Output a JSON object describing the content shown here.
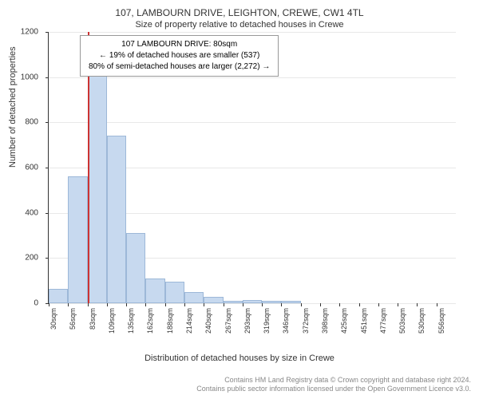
{
  "title": "107, LAMBOURN DRIVE, LEIGHTON, CREWE, CW1 4TL",
  "subtitle": "Size of property relative to detached houses in Crewe",
  "annotation": {
    "line1": "107 LAMBOURN DRIVE: 80sqm",
    "line2": "← 19% of detached houses are smaller (537)",
    "line3": "80% of semi-detached houses are larger (2,272) →"
  },
  "chart": {
    "type": "histogram",
    "ylabel": "Number of detached properties",
    "xlabel": "Distribution of detached houses by size in Crewe",
    "ylim": [
      0,
      1200
    ],
    "yticks": [
      0,
      200,
      400,
      600,
      800,
      1000,
      1200
    ],
    "xticks": [
      "30sqm",
      "56sqm",
      "83sqm",
      "109sqm",
      "135sqm",
      "162sqm",
      "188sqm",
      "214sqm",
      "240sqm",
      "267sqm",
      "293sqm",
      "319sqm",
      "346sqm",
      "372sqm",
      "398sqm",
      "425sqm",
      "451sqm",
      "477sqm",
      "503sqm",
      "530sqm",
      "556sqm"
    ],
    "values": [
      65,
      560,
      1010,
      740,
      310,
      110,
      95,
      50,
      30,
      10,
      15,
      10,
      12,
      0,
      0,
      0,
      0,
      0,
      0,
      0,
      0
    ],
    "bar_fill": "#c7d9ef",
    "bar_border": "#9db8d8",
    "grid_color": "#e8e8e8",
    "background_color": "#ffffff",
    "marker_x_index": 2,
    "marker_color": "#cc3333",
    "title_fontsize": 12,
    "label_fontsize": 11,
    "tick_fontsize": 10
  },
  "footer": {
    "line1": "Contains HM Land Registry data © Crown copyright and database right 2024.",
    "line2": "Contains public sector information licensed under the Open Government Licence v3.0."
  }
}
